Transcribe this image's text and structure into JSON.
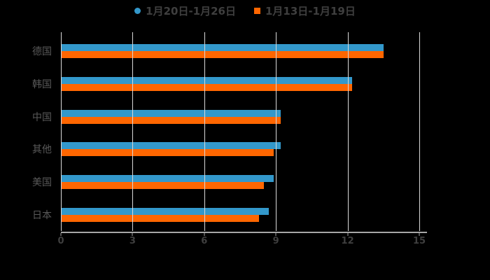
{
  "chart_data": {
    "type": "bar",
    "orientation": "horizontal",
    "title": "",
    "xlabel": "",
    "ylabel": "",
    "categories": [
      "德国",
      "韩国",
      "中国",
      "其他",
      "美国",
      "日本"
    ],
    "series": [
      {
        "name": "1月20日-1月26日",
        "color": "#3398cb",
        "marker": "circle",
        "values": [
          13.5,
          12.2,
          9.2,
          9.2,
          8.9,
          8.7
        ]
      },
      {
        "name": "1月13日-1月19日",
        "color": "#ff6600",
        "marker": "square",
        "values": [
          13.5,
          12.2,
          9.2,
          8.9,
          8.5,
          8.3
        ]
      }
    ],
    "x_ticks": [
      "0",
      "3",
      "6",
      "9",
      "12",
      "15"
    ],
    "xlim": [
      0,
      15
    ],
    "grid": "vertical-gridlines-on",
    "legend_position": "top-center"
  },
  "colors": {
    "background": "#000000",
    "gridline": "#d9d9d9",
    "axis_line": "#a6a6a6",
    "tick_label": "#3f3f3f",
    "category_label": "#595959",
    "legend_text": "#3f3f3f",
    "series_blue": "#3398cb",
    "series_orange": "#ff6600"
  }
}
